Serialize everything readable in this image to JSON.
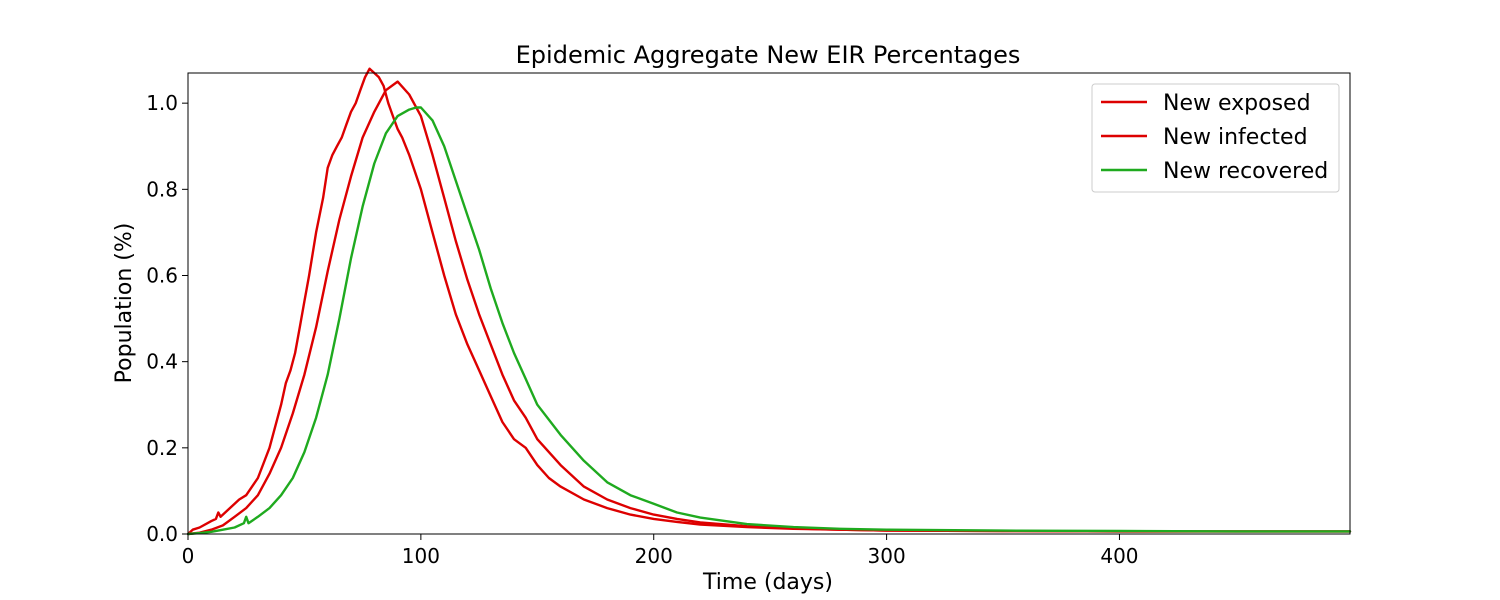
{
  "chart_data": {
    "type": "line",
    "title": "Epidemic Aggregate New EIR Percentages",
    "xlabel": "Time (days)",
    "ylabel": "Population (%)",
    "xlim": [
      0,
      499
    ],
    "ylim": [
      0,
      1.07
    ],
    "xticks": [
      0,
      100,
      200,
      300,
      400
    ],
    "xtick_labels": [
      "0",
      "100",
      "200",
      "300",
      "400"
    ],
    "yticks": [
      0.0,
      0.2,
      0.4,
      0.6,
      0.8,
      1.0
    ],
    "ytick_labels": [
      "0.0",
      "0.2",
      "0.4",
      "0.6",
      "0.8",
      "1.0"
    ],
    "grid": false,
    "legend_position": "top-right",
    "series": [
      {
        "name": "New exposed",
        "color": "#dd0000",
        "x": [
          0,
          2,
          5,
          10,
          12,
          13,
          14,
          18,
          22,
          25,
          30,
          35,
          40,
          42,
          44,
          46,
          48,
          50,
          52,
          55,
          58,
          60,
          62,
          64,
          66,
          68,
          70,
          72,
          74,
          76,
          78,
          80,
          82,
          84,
          86,
          88,
          90,
          92,
          95,
          100,
          105,
          110,
          115,
          120,
          125,
          130,
          135,
          140,
          145,
          150,
          155,
          160,
          170,
          180,
          190,
          200,
          210,
          220,
          240,
          260,
          280,
          300,
          350,
          400,
          450,
          499
        ],
        "y": [
          0.0,
          0.01,
          0.015,
          0.03,
          0.035,
          0.05,
          0.04,
          0.06,
          0.08,
          0.09,
          0.13,
          0.2,
          0.3,
          0.35,
          0.38,
          0.42,
          0.48,
          0.54,
          0.6,
          0.7,
          0.78,
          0.85,
          0.88,
          0.9,
          0.92,
          0.95,
          0.98,
          1.0,
          1.03,
          1.06,
          1.08,
          1.07,
          1.06,
          1.04,
          1.0,
          0.97,
          0.94,
          0.92,
          0.88,
          0.8,
          0.7,
          0.6,
          0.51,
          0.44,
          0.38,
          0.32,
          0.26,
          0.22,
          0.2,
          0.16,
          0.13,
          0.11,
          0.08,
          0.06,
          0.045,
          0.035,
          0.028,
          0.022,
          0.016,
          0.012,
          0.01,
          0.008,
          0.007,
          0.006,
          0.006,
          0.006
        ]
      },
      {
        "name": "New infected",
        "color": "#dd0000",
        "x": [
          0,
          5,
          10,
          15,
          20,
          25,
          30,
          35,
          40,
          45,
          50,
          55,
          60,
          65,
          70,
          75,
          80,
          85,
          90,
          95,
          100,
          105,
          110,
          115,
          120,
          125,
          130,
          135,
          140,
          145,
          150,
          160,
          170,
          180,
          190,
          200,
          210,
          220,
          240,
          260,
          280,
          300,
          350,
          400,
          450,
          499
        ],
        "y": [
          0.0,
          0.003,
          0.01,
          0.02,
          0.04,
          0.06,
          0.09,
          0.14,
          0.2,
          0.28,
          0.37,
          0.48,
          0.61,
          0.73,
          0.83,
          0.92,
          0.98,
          1.03,
          1.05,
          1.02,
          0.97,
          0.88,
          0.78,
          0.68,
          0.59,
          0.51,
          0.44,
          0.37,
          0.31,
          0.27,
          0.22,
          0.16,
          0.11,
          0.08,
          0.06,
          0.045,
          0.035,
          0.027,
          0.018,
          0.013,
          0.01,
          0.008,
          0.007,
          0.006,
          0.006,
          0.006
        ]
      },
      {
        "name": "New recovered",
        "color": "#1faa1f",
        "x": [
          0,
          5,
          10,
          15,
          20,
          24,
          25,
          26,
          30,
          35,
          40,
          45,
          50,
          55,
          60,
          65,
          70,
          75,
          80,
          85,
          90,
          95,
          98,
          100,
          105,
          110,
          115,
          120,
          125,
          130,
          135,
          140,
          145,
          150,
          160,
          170,
          180,
          190,
          200,
          210,
          220,
          240,
          260,
          280,
          300,
          350,
          400,
          450,
          499
        ],
        "y": [
          0.0,
          0.002,
          0.005,
          0.01,
          0.015,
          0.025,
          0.04,
          0.025,
          0.04,
          0.06,
          0.09,
          0.13,
          0.19,
          0.27,
          0.37,
          0.5,
          0.64,
          0.76,
          0.86,
          0.93,
          0.97,
          0.985,
          0.99,
          0.99,
          0.96,
          0.9,
          0.82,
          0.74,
          0.66,
          0.57,
          0.49,
          0.42,
          0.36,
          0.3,
          0.23,
          0.17,
          0.12,
          0.09,
          0.07,
          0.05,
          0.038,
          0.023,
          0.016,
          0.012,
          0.01,
          0.008,
          0.007,
          0.006,
          0.006
        ]
      }
    ]
  }
}
